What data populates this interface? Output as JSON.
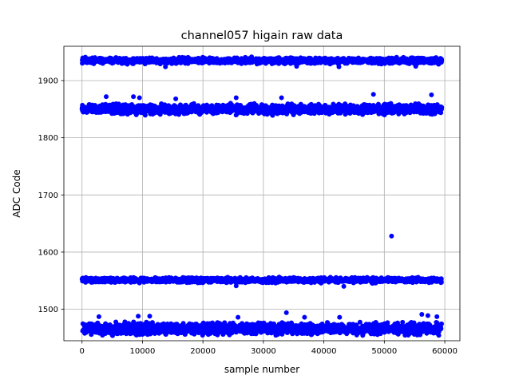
{
  "chart_data": {
    "type": "scatter",
    "title": "channel057 higain raw data",
    "xlabel": "sample number",
    "ylabel": "ADC Code",
    "xlim": [
      -3000,
      62500
    ],
    "ylim": [
      1445,
      1960
    ],
    "xticks": [
      0,
      10000,
      20000,
      30000,
      40000,
      50000,
      60000
    ],
    "xtick_labels": [
      "0",
      "10000",
      "20000",
      "30000",
      "40000",
      "50000",
      "60000"
    ],
    "yticks": [
      1500,
      1600,
      1700,
      1800,
      1900
    ],
    "ytick_labels": [
      "1500",
      "1600",
      "1700",
      "1800",
      "1900"
    ],
    "grid": true,
    "marker_color": "#0000ff",
    "x_range": [
      0,
      59500
    ],
    "bands": [
      {
        "center": 1935,
        "low": 1928,
        "high": 1942
      },
      {
        "center": 1847,
        "low": 1838,
        "high": 1862
      },
      {
        "center": 1551,
        "low": 1545,
        "high": 1557
      },
      {
        "center": 1466,
        "low": 1452,
        "high": 1480
      }
    ],
    "outliers": [
      {
        "x": 4000,
        "y": 1872
      },
      {
        "x": 8500,
        "y": 1872
      },
      {
        "x": 9500,
        "y": 1870
      },
      {
        "x": 15500,
        "y": 1868
      },
      {
        "x": 25500,
        "y": 1870
      },
      {
        "x": 33000,
        "y": 1870
      },
      {
        "x": 48200,
        "y": 1876
      },
      {
        "x": 57800,
        "y": 1875
      },
      {
        "x": 51200,
        "y": 1628
      },
      {
        "x": 33800,
        "y": 1494
      },
      {
        "x": 2800,
        "y": 1487
      },
      {
        "x": 9300,
        "y": 1488
      },
      {
        "x": 11200,
        "y": 1488
      },
      {
        "x": 25800,
        "y": 1486
      },
      {
        "x": 36800,
        "y": 1486
      },
      {
        "x": 42600,
        "y": 1486
      },
      {
        "x": 56200,
        "y": 1491
      },
      {
        "x": 57200,
        "y": 1489
      },
      {
        "x": 58700,
        "y": 1487
      },
      {
        "x": 43300,
        "y": 1540
      },
      {
        "x": 25500,
        "y": 1541
      },
      {
        "x": 13800,
        "y": 1924
      },
      {
        "x": 35500,
        "y": 1925
      },
      {
        "x": 42500,
        "y": 1924
      },
      {
        "x": 55200,
        "y": 1925
      }
    ]
  }
}
